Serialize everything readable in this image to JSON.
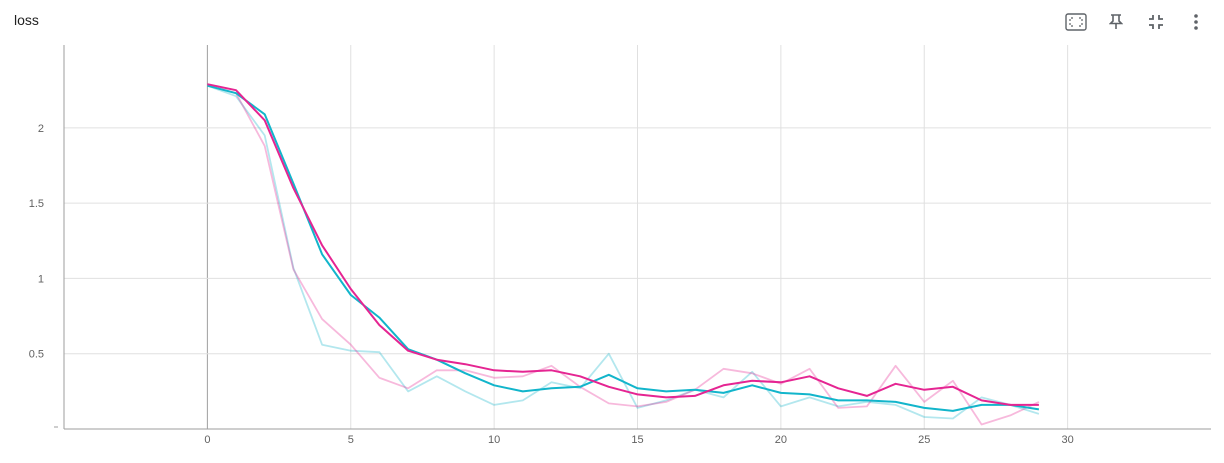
{
  "title": "loss",
  "toolbar": {
    "icons": [
      "fit-domain-icon",
      "pin-icon",
      "collapse-icon",
      "more-vert-icon"
    ]
  },
  "colors": {
    "series_a": "#12b5cb",
    "series_b": "#e52592",
    "grid": "#e0e0e0",
    "axis": "#9e9e9e"
  },
  "chart_data": {
    "type": "line",
    "title": "loss",
    "xlabel": "",
    "ylabel": "",
    "xlim": [
      -5,
      35
    ],
    "ylim": [
      0,
      2.55
    ],
    "xticks": [
      0,
      5,
      10,
      15,
      20,
      25,
      30
    ],
    "yticks": [
      0.5,
      1,
      1.5,
      2
    ],
    "ytick_labels": [
      "0.5",
      "1",
      "1.5",
      "2"
    ],
    "grid": true,
    "x": [
      0,
      1,
      2,
      3,
      4,
      5,
      6,
      7,
      8,
      9,
      10,
      11,
      12,
      13,
      14,
      15,
      16,
      17,
      18,
      19,
      20,
      21,
      22,
      23,
      24,
      25,
      26,
      27,
      28,
      29
    ],
    "series": [
      {
        "color": "#12b5cb",
        "smoothed": [
          2.28,
          2.23,
          2.09,
          1.63,
          1.16,
          0.89,
          0.74,
          0.53,
          0.46,
          0.37,
          0.29,
          0.25,
          0.27,
          0.28,
          0.36,
          0.27,
          0.25,
          0.26,
          0.24,
          0.29,
          0.24,
          0.23,
          0.19,
          0.19,
          0.18,
          0.14,
          0.12,
          0.16,
          0.16,
          0.13
        ],
        "raw": [
          2.28,
          2.21,
          1.95,
          1.07,
          0.56,
          0.52,
          0.51,
          0.25,
          0.35,
          0.25,
          0.16,
          0.19,
          0.31,
          0.27,
          0.5,
          0.14,
          0.19,
          0.26,
          0.21,
          0.38,
          0.15,
          0.21,
          0.15,
          0.18,
          0.16,
          0.08,
          0.07,
          0.21,
          0.16,
          0.1
        ]
      },
      {
        "color": "#e52592",
        "smoothed": [
          2.29,
          2.25,
          2.05,
          1.6,
          1.22,
          0.93,
          0.69,
          0.52,
          0.46,
          0.43,
          0.39,
          0.38,
          0.39,
          0.35,
          0.28,
          0.23,
          0.21,
          0.22,
          0.29,
          0.32,
          0.31,
          0.35,
          0.27,
          0.22,
          0.3,
          0.26,
          0.28,
          0.19,
          0.16,
          0.16
        ],
        "raw": [
          2.29,
          2.23,
          1.88,
          1.06,
          0.73,
          0.56,
          0.34,
          0.27,
          0.39,
          0.39,
          0.34,
          0.35,
          0.42,
          0.28,
          0.17,
          0.15,
          0.18,
          0.26,
          0.4,
          0.37,
          0.3,
          0.4,
          0.14,
          0.15,
          0.42,
          0.18,
          0.32,
          0.03,
          0.09,
          0.18
        ]
      }
    ]
  }
}
